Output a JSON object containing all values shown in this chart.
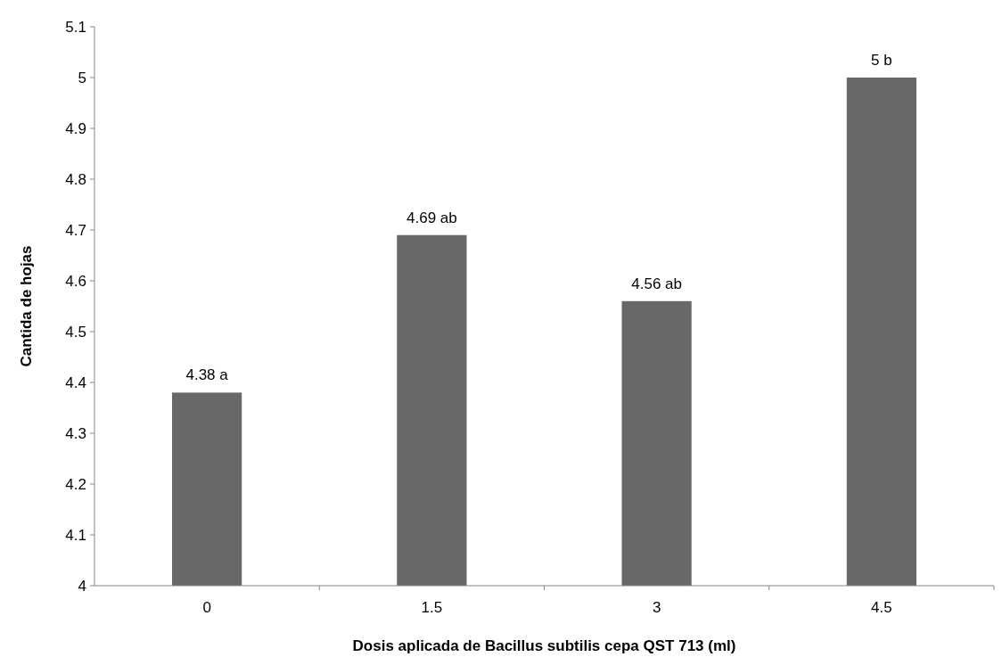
{
  "chart_data": {
    "type": "bar",
    "xlabel": "Dosis aplicada de Bacillus subtilis cepa QST 713 (ml)",
    "ylabel": "Cantida de hojas",
    "categories": [
      "0",
      "1.5",
      "3",
      "4.5"
    ],
    "values": [
      4.38,
      4.69,
      4.56,
      5
    ],
    "value_labels": [
      "4.38 a",
      "4.69 ab",
      "4.56 ab",
      "5 b"
    ],
    "color": "#686868",
    "ylim": [
      4,
      5.1
    ],
    "yticks": [
      4,
      4.1,
      4.2,
      4.3,
      4.4,
      4.5,
      4.6,
      4.7,
      4.8,
      4.9,
      5,
      5.1
    ],
    "grid": false
  }
}
